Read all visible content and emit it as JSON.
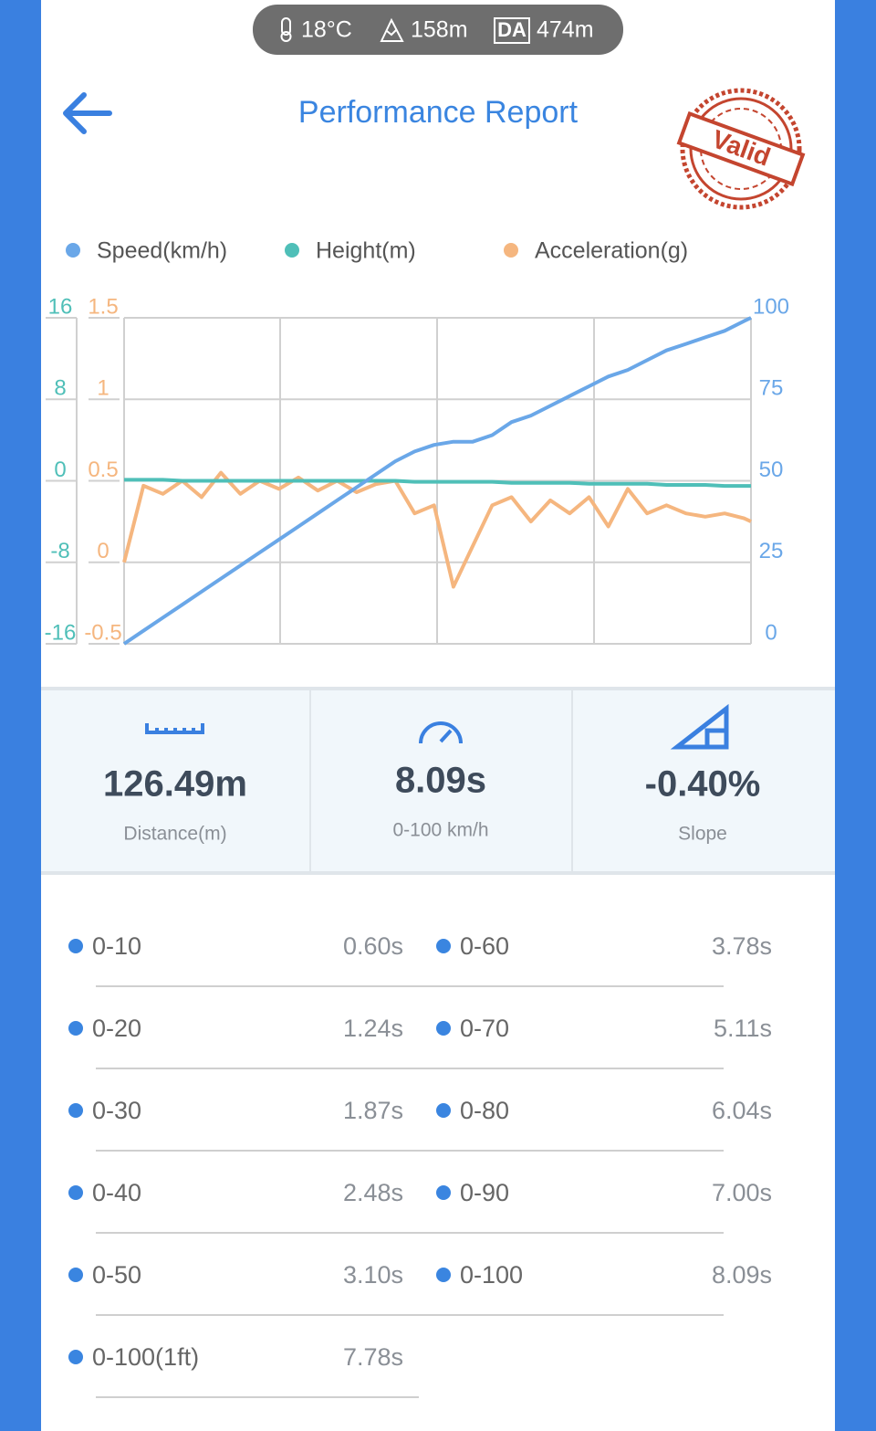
{
  "header": {
    "temperature": "18°C",
    "altitude": "158m",
    "da_label": "DA",
    "density_altitude": "474m",
    "title": "Performance Report",
    "stamp": "Valid"
  },
  "chart_data": {
    "type": "line",
    "x": [
      0,
      0.25,
      0.5,
      0.75,
      1,
      1.25,
      1.5,
      1.75,
      2,
      2.25,
      2.5,
      2.75,
      3,
      3.25,
      3.5,
      3.75,
      4,
      4.25,
      4.5,
      4.75,
      5,
      5.25,
      5.5,
      5.75,
      6,
      6.25,
      6.5,
      6.75,
      7,
      7.25,
      7.5,
      7.75,
      8,
      8.09
    ],
    "series": [
      {
        "name": "Speed(km/h)",
        "color": "#6aa7e8",
        "side": "right",
        "ylim": [
          0,
          100
        ],
        "yticks": [
          0,
          25,
          50,
          75,
          100
        ],
        "values": [
          0,
          4,
          8,
          12,
          16,
          20,
          24,
          28,
          32,
          36,
          40,
          44,
          48,
          52,
          56,
          59,
          61,
          62,
          62,
          64,
          68,
          70,
          73,
          76,
          79,
          82,
          84,
          87,
          90,
          92,
          94,
          96,
          99,
          100
        ]
      },
      {
        "name": "Height(m)",
        "color": "#4fbfb8",
        "side": "left",
        "ylim": [
          -16,
          16
        ],
        "yticks": [
          -16,
          -8,
          0,
          8,
          16
        ],
        "values": [
          0.1,
          0.1,
          0.1,
          0,
          0,
          0,
          0,
          0,
          0,
          0,
          0,
          0,
          0,
          0,
          0,
          -0.1,
          -0.1,
          -0.1,
          -0.1,
          -0.1,
          -0.2,
          -0.2,
          -0.2,
          -0.2,
          -0.3,
          -0.3,
          -0.3,
          -0.3,
          -0.4,
          -0.4,
          -0.4,
          -0.5,
          -0.5,
          -0.5
        ]
      },
      {
        "name": "Acceleration(g)",
        "color": "#f5b67f",
        "side": "left",
        "ylim": [
          -0.5,
          1.5
        ],
        "yticks": [
          -0.5,
          0,
          0.5,
          1,
          1.5
        ],
        "values": [
          0,
          0.47,
          0.42,
          0.5,
          0.4,
          0.55,
          0.42,
          0.5,
          0.45,
          0.52,
          0.44,
          0.5,
          0.43,
          0.48,
          0.5,
          0.3,
          0.35,
          -0.15,
          0.1,
          0.35,
          0.4,
          0.25,
          0.38,
          0.3,
          0.4,
          0.22,
          0.45,
          0.3,
          0.35,
          0.3,
          0.28,
          0.3,
          0.27,
          0.25
        ]
      }
    ],
    "grid": true
  },
  "stats": [
    {
      "value": "126.49m",
      "label": "Distance(m)"
    },
    {
      "value": "8.09s",
      "label": "0-100 km/h"
    },
    {
      "value": "-0.40%",
      "label": "Slope"
    }
  ],
  "splits": [
    [
      {
        "label": "0-10",
        "time": "0.60s"
      },
      {
        "label": "0-60",
        "time": "3.78s"
      }
    ],
    [
      {
        "label": "0-20",
        "time": "1.24s"
      },
      {
        "label": "0-70",
        "time": "5.11s"
      }
    ],
    [
      {
        "label": "0-30",
        "time": "1.87s"
      },
      {
        "label": "0-80",
        "time": "6.04s"
      }
    ],
    [
      {
        "label": "0-40",
        "time": "2.48s"
      },
      {
        "label": "0-90",
        "time": "7.00s"
      }
    ],
    [
      {
        "label": "0-50",
        "time": "3.10s"
      },
      {
        "label": "0-100",
        "time": "8.09s"
      }
    ],
    [
      {
        "label": "0-100(1ft)",
        "time": "7.78s"
      }
    ]
  ]
}
